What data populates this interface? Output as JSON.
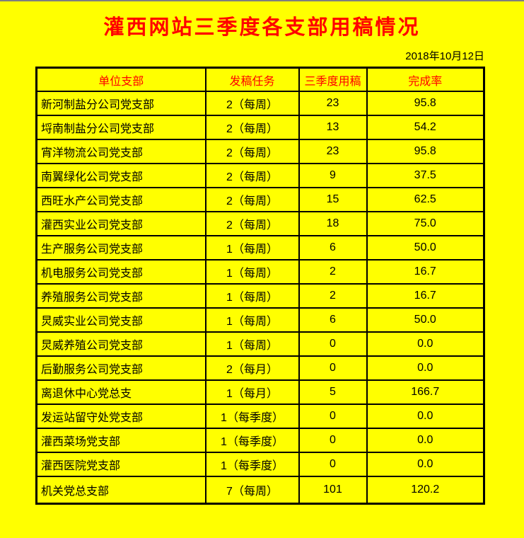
{
  "page": {
    "title": "灌西网站三季度各支部用稿情况",
    "date": "2018年10月12日"
  },
  "colors": {
    "background": "#FFFF00",
    "title_text": "#FF0000",
    "header_text": "#FF0000",
    "body_text": "#000000",
    "table_border": "#000000",
    "top_edge_line": "#7f7f7f"
  },
  "table": {
    "headers": [
      "单位支部",
      "发稿任务",
      "三季度用稿",
      "完成率"
    ],
    "rows": [
      {
        "unit": "新河制盐分公司党支部",
        "task": "2（每周）",
        "used": "23",
        "rate": "95.8"
      },
      {
        "unit": "埒南制盐分公司党支部",
        "task": "2（每周）",
        "used": "13",
        "rate": "54.2"
      },
      {
        "unit": "宵洋物流公司党支部",
        "task": "2（每周）",
        "used": "23",
        "rate": "95.8"
      },
      {
        "unit": "南翼绿化公司党支部",
        "task": "2（每周）",
        "used": "9",
        "rate": "37.5"
      },
      {
        "unit": "西旺水产公司党支部",
        "task": "2（每周）",
        "used": "15",
        "rate": "62.5"
      },
      {
        "unit": "灌西实业公司党支部",
        "task": "2（每周）",
        "used": "18",
        "rate": "75.0"
      },
      {
        "unit": "生产服务公司党支部",
        "task": "1（每周）",
        "used": "6",
        "rate": "50.0"
      },
      {
        "unit": "机电服务公司党支部",
        "task": "1（每周）",
        "used": "2",
        "rate": "16.7"
      },
      {
        "unit": "养殖服务公司党支部",
        "task": "1（每周）",
        "used": "2",
        "rate": "16.7"
      },
      {
        "unit": "炅威实业公司党支部",
        "task": "1（每周）",
        "used": "6",
        "rate": "50.0"
      },
      {
        "unit": "炅威养殖公司党支部",
        "task": "1（每周）",
        "used": "0",
        "rate": "0.0"
      },
      {
        "unit": "后勤服务公司党支部",
        "task": "2（每月）",
        "used": "0",
        "rate": "0.0"
      },
      {
        "unit": "离退休中心党总支",
        "task": "1（每月）",
        "used": "5",
        "rate": "166.7"
      },
      {
        "unit": "发运站留守处党支部",
        "task": "1（每季度）",
        "used": "0",
        "rate": "0.0"
      },
      {
        "unit": "灌西菜场党支部",
        "task": "1（每季度）",
        "used": "0",
        "rate": "0.0"
      },
      {
        "unit": "灌西医院党支部",
        "task": "1（每季度）",
        "used": "0",
        "rate": "0.0"
      },
      {
        "unit": "机关党总支部",
        "task": "7（每周）",
        "used": "101",
        "rate": "120.2"
      }
    ]
  }
}
